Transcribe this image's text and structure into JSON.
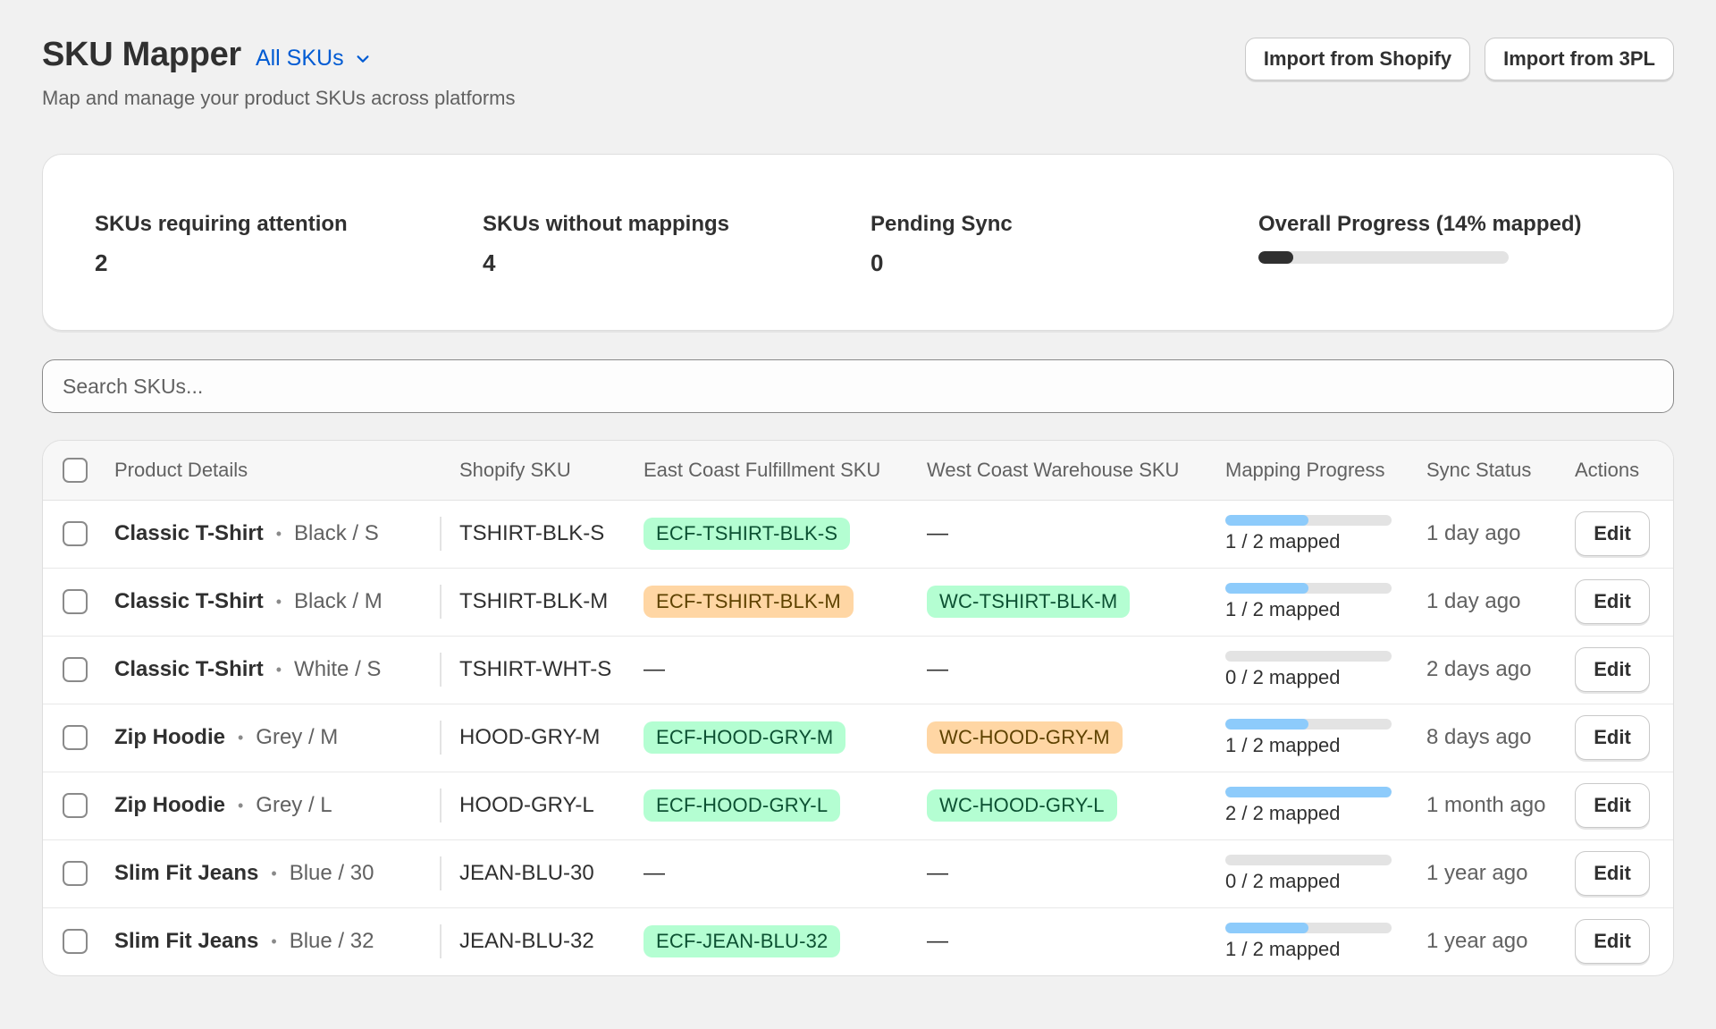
{
  "header": {
    "title": "SKU Mapper",
    "view_label": "All SKUs",
    "subtitle": "Map and manage your product SKUs across platforms",
    "actions": [
      {
        "label": "Import from Shopify"
      },
      {
        "label": "Import from 3PL"
      }
    ]
  },
  "stats": {
    "attention": {
      "label": "SKUs requiring attention",
      "value": "2"
    },
    "without_mappings": {
      "label": "SKUs without mappings",
      "value": "4"
    },
    "pending_sync": {
      "label": "Pending Sync",
      "value": "0"
    },
    "overall": {
      "label": "Overall Progress (14% mapped)",
      "progress": 0.14
    }
  },
  "search": {
    "placeholder": "Search SKUs..."
  },
  "colors": {
    "accent": "#005bd3",
    "mapped_badge": "#b4fed2",
    "warning_badge": "#ffd6a4",
    "progress_fill": "#8dcbfb",
    "overall_fill": "#303030"
  },
  "table": {
    "columns": [
      "Product Details",
      "Shopify SKU",
      "East Coast Fulfillment SKU",
      "West Coast Warehouse SKU",
      "Mapping Progress",
      "Sync Status",
      "Actions"
    ],
    "edit_label": "Edit",
    "rows": [
      {
        "product": "Classic T-Shirt",
        "variant": "Black / S",
        "shopify_sku": "TSHIRT-BLK-S",
        "ecf_sku": "ECF-TSHIRT-BLK-S",
        "ecf_status": "green",
        "wc_sku": "—",
        "wc_status": "none",
        "mapped": 1,
        "total": 2,
        "progress_label": "1 / 2 mapped",
        "sync": "1 day ago"
      },
      {
        "product": "Classic T-Shirt",
        "variant": "Black / M",
        "shopify_sku": "TSHIRT-BLK-M",
        "ecf_sku": "ECF-TSHIRT-BLK-M",
        "ecf_status": "orange",
        "wc_sku": "WC-TSHIRT-BLK-M",
        "wc_status": "green",
        "mapped": 1,
        "total": 2,
        "progress_label": "1 / 2 mapped",
        "sync": "1 day ago"
      },
      {
        "product": "Classic T-Shirt",
        "variant": "White / S",
        "shopify_sku": "TSHIRT-WHT-S",
        "ecf_sku": "—",
        "ecf_status": "none",
        "wc_sku": "—",
        "wc_status": "none",
        "mapped": 0,
        "total": 2,
        "progress_label": "0 / 2 mapped",
        "sync": "2 days ago"
      },
      {
        "product": "Zip Hoodie",
        "variant": "Grey / M",
        "shopify_sku": "HOOD-GRY-M",
        "ecf_sku": "ECF-HOOD-GRY-M",
        "ecf_status": "green",
        "wc_sku": "WC-HOOD-GRY-M",
        "wc_status": "orange",
        "mapped": 1,
        "total": 2,
        "progress_label": "1 / 2 mapped",
        "sync": "8 days ago"
      },
      {
        "product": "Zip Hoodie",
        "variant": "Grey / L",
        "shopify_sku": "HOOD-GRY-L",
        "ecf_sku": "ECF-HOOD-GRY-L",
        "ecf_status": "green",
        "wc_sku": "WC-HOOD-GRY-L",
        "wc_status": "green",
        "mapped": 2,
        "total": 2,
        "progress_label": "2 / 2 mapped",
        "sync": "1 month ago"
      },
      {
        "product": "Slim Fit Jeans",
        "variant": "Blue / 30",
        "shopify_sku": "JEAN-BLU-30",
        "ecf_sku": "—",
        "ecf_status": "none",
        "wc_sku": "—",
        "wc_status": "none",
        "mapped": 0,
        "total": 2,
        "progress_label": "0 / 2 mapped",
        "sync": "1 year ago"
      },
      {
        "product": "Slim Fit Jeans",
        "variant": "Blue / 32",
        "shopify_sku": "JEAN-BLU-32",
        "ecf_sku": "ECF-JEAN-BLU-32",
        "ecf_status": "green",
        "wc_sku": "—",
        "wc_status": "none",
        "mapped": 1,
        "total": 2,
        "progress_label": "1 / 2 mapped",
        "sync": "1 year ago"
      }
    ]
  }
}
